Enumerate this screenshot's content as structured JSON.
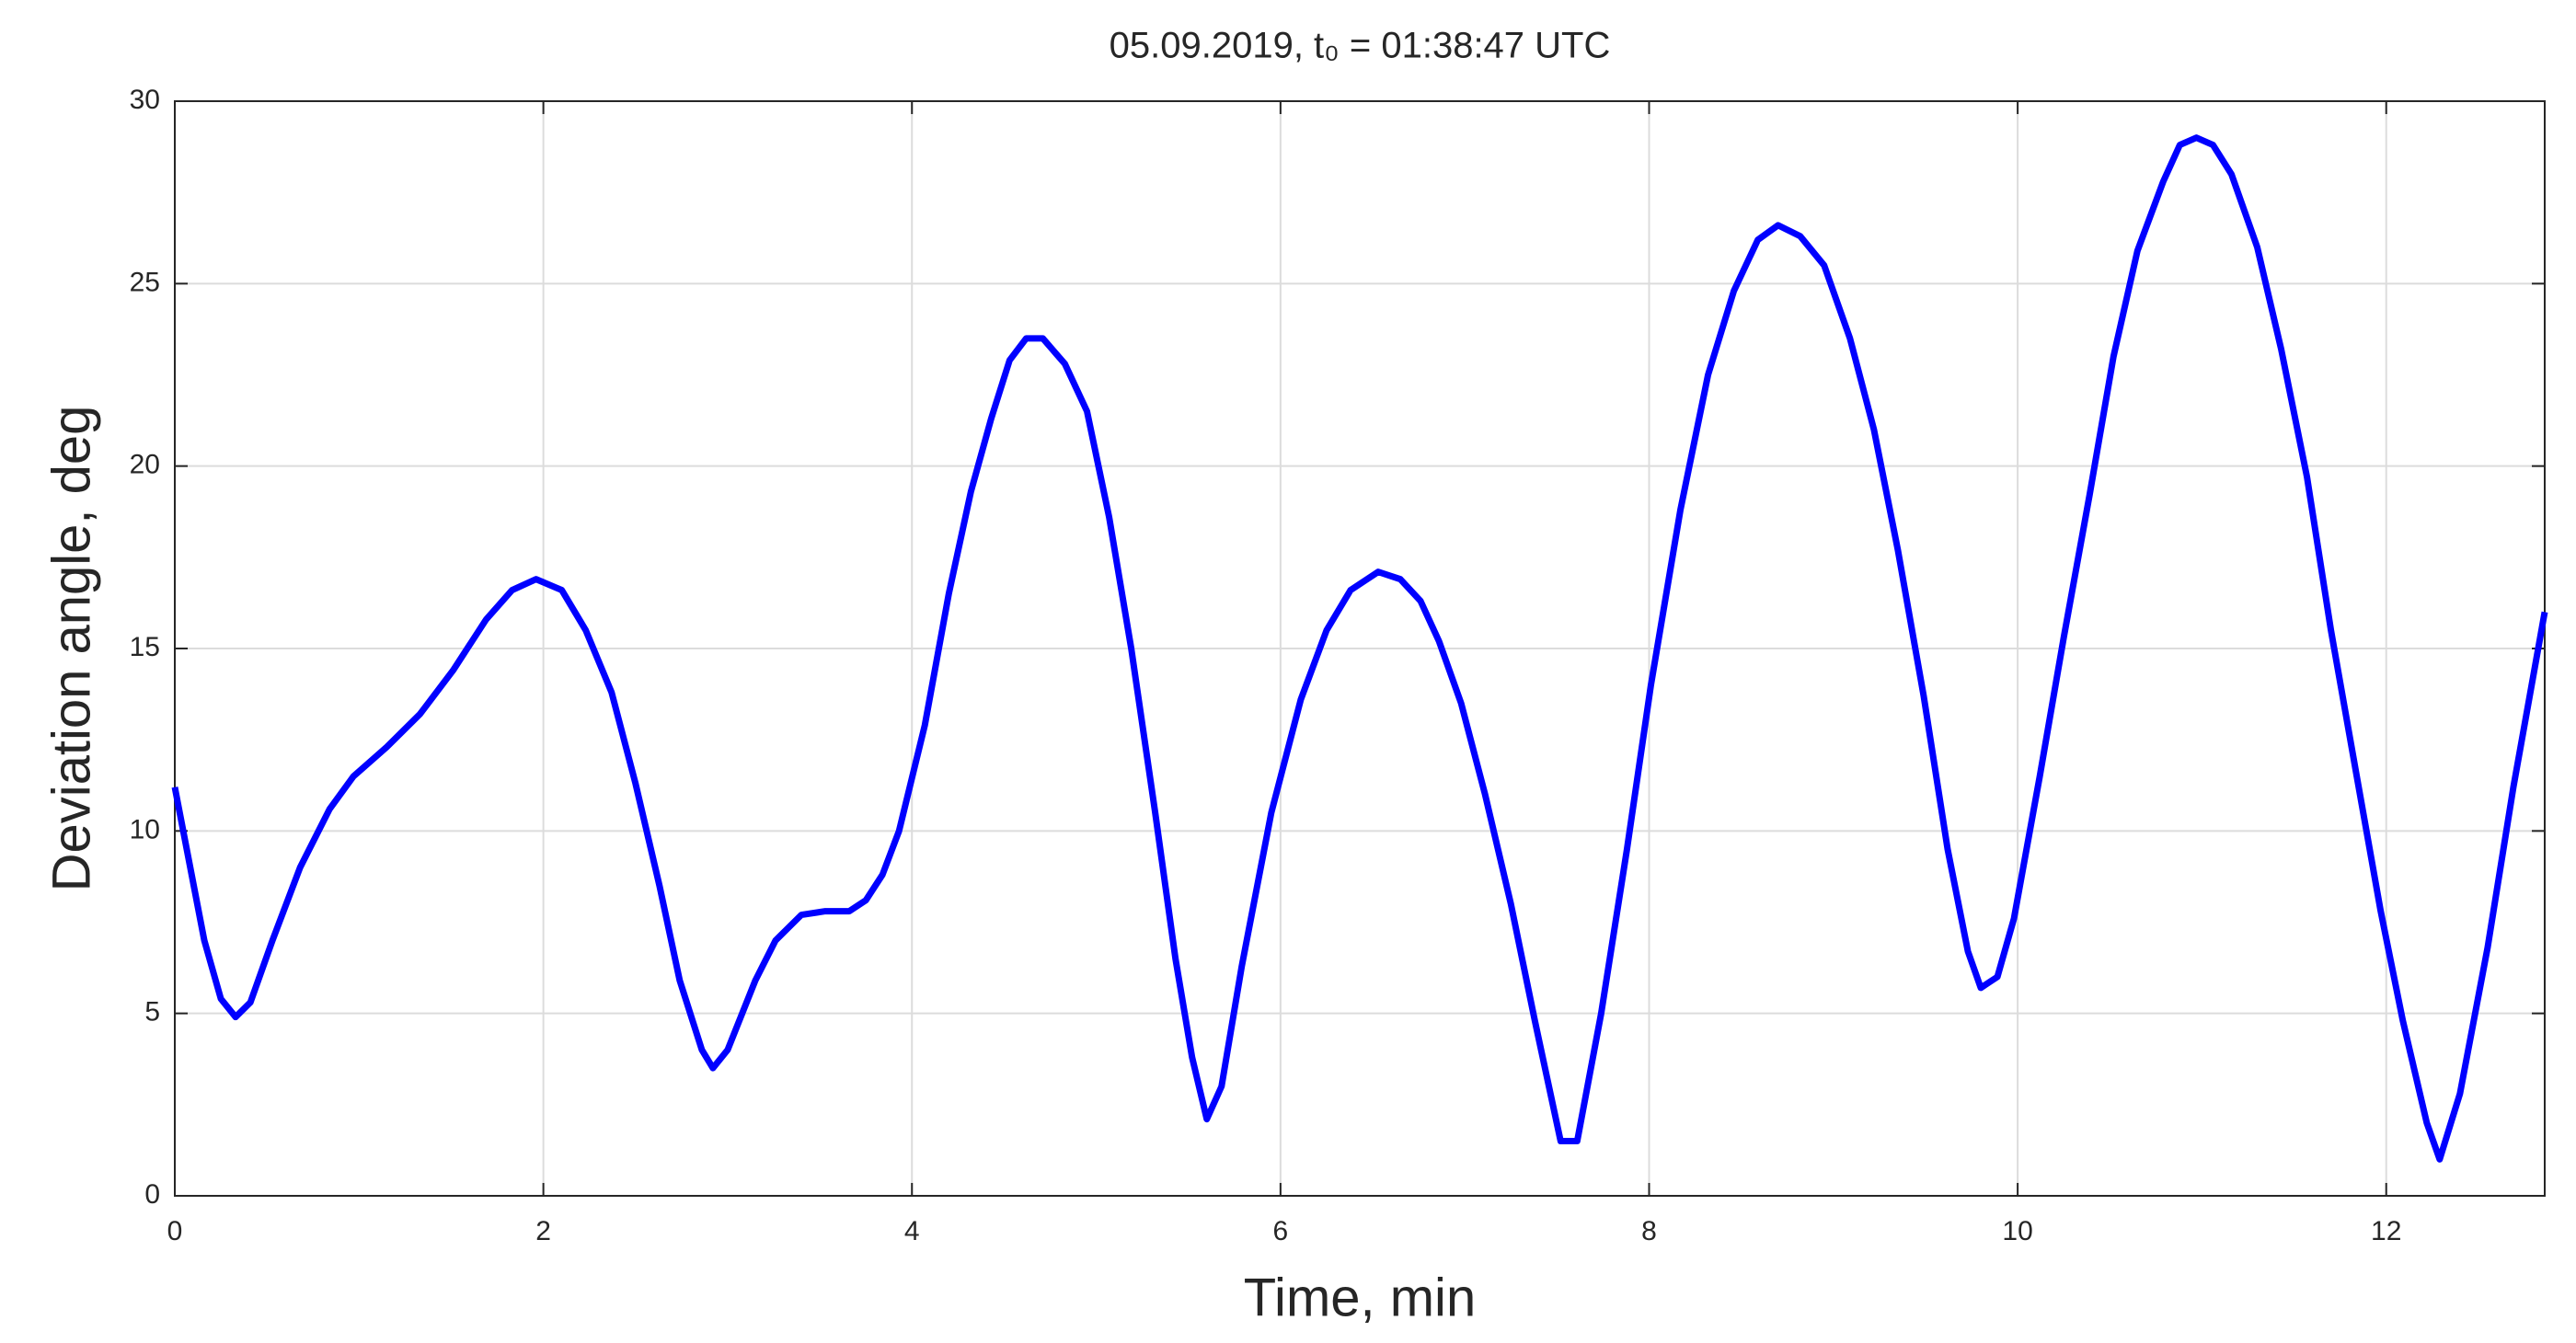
{
  "chart_data": {
    "type": "line",
    "title": "05.09.2019, t₀ = 01:38:47 UTC",
    "x_label": "Time, min",
    "y_label": "Deviation angle, deg",
    "x": [
      0,
      0.16,
      0.25,
      0.33,
      0.41,
      0.53,
      0.68,
      0.84,
      0.97,
      1.15,
      1.33,
      1.51,
      1.69,
      1.83,
      1.96,
      2.1,
      2.23,
      2.37,
      2.5,
      2.63,
      2.74,
      2.86,
      2.92,
      3.0,
      3.15,
      3.26,
      3.4,
      3.53,
      3.66,
      3.75,
      3.84,
      3.93,
      4.07,
      4.2,
      4.32,
      4.43,
      4.53,
      4.62,
      4.71,
      4.83,
      4.95,
      5.07,
      5.19,
      5.32,
      5.43,
      5.52,
      5.6,
      5.68,
      5.79,
      5.95,
      6.11,
      6.25,
      6.38,
      6.53,
      6.65,
      6.76,
      6.86,
      6.98,
      7.11,
      7.25,
      7.38,
      7.52,
      7.61,
      7.74,
      7.88,
      8.01,
      8.17,
      8.32,
      8.46,
      8.59,
      8.7,
      8.82,
      8.95,
      9.09,
      9.22,
      9.35,
      9.49,
      9.62,
      9.73,
      9.8,
      9.89,
      9.98,
      10.12,
      10.25,
      10.39,
      10.52,
      10.65,
      10.79,
      10.88,
      10.97,
      11.06,
      11.16,
      11.3,
      11.43,
      11.57,
      11.7,
      11.84,
      11.97,
      12.09,
      12.22,
      12.29,
      12.4,
      12.55,
      12.69,
      12.86
    ],
    "values": [
      11.2,
      7,
      5.4,
      4.9,
      5.3,
      7,
      9,
      10.6,
      11.5,
      12.3,
      13.2,
      14.4,
      15.8,
      16.6,
      16.9,
      16.6,
      15.5,
      13.8,
      11.3,
      8.5,
      5.9,
      4.0,
      3.5,
      4.0,
      5.9,
      7.0,
      7.7,
      7.8,
      7.8,
      8.1,
      8.8,
      10.0,
      12.9,
      16.5,
      19.3,
      21.3,
      22.9,
      23.5,
      23.5,
      22.8,
      21.5,
      18.6,
      15,
      10.5,
      6.5,
      3.8,
      2.1,
      3,
      6.3,
      10.5,
      13.6,
      15.5,
      16.6,
      17.1,
      16.9,
      16.3,
      15.2,
      13.5,
      11,
      8,
      4.8,
      1.5,
      1.5,
      5,
      9.5,
      14,
      18.8,
      22.5,
      24.8,
      26.2,
      26.6,
      26.3,
      25.5,
      23.5,
      21,
      17.7,
      13.7,
      9.5,
      6.7,
      5.7,
      6,
      7.6,
      11.5,
      15.3,
      19.2,
      23,
      25.9,
      27.8,
      28.8,
      29,
      28.8,
      28.0,
      26,
      23.2,
      19.7,
      15.5,
      11.5,
      7.8,
      4.8,
      2,
      1,
      2.8,
      6.8,
      11.2,
      16
    ],
    "color": "#0000ff",
    "xlim": [
      0,
      12.86
    ],
    "xticks": [
      0,
      2,
      4,
      6,
      8,
      10,
      12
    ],
    "ylim": [
      0,
      30
    ],
    "yticks": [
      0,
      5,
      10,
      15,
      20,
      25,
      30
    ],
    "grid": true
  }
}
